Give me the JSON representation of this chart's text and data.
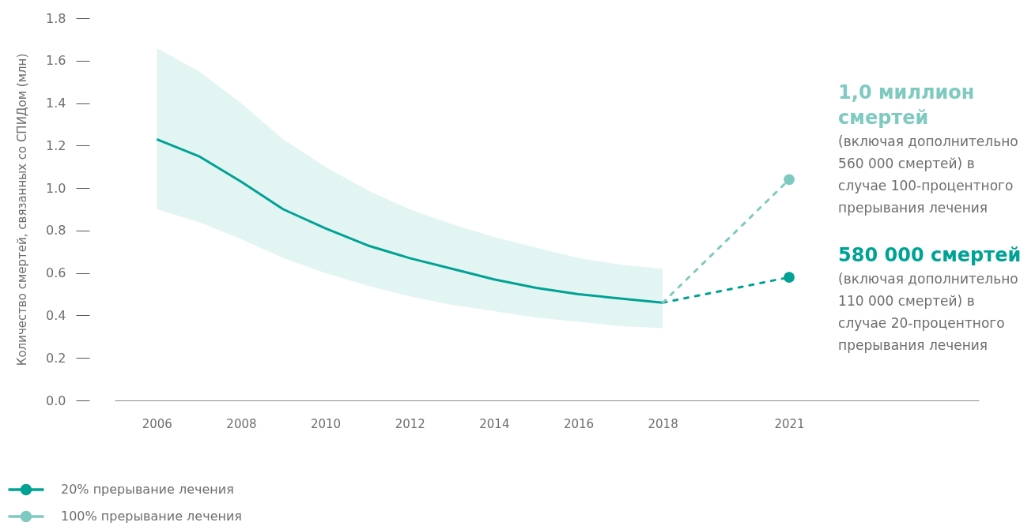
{
  "chart_data": {
    "type": "line",
    "ylabel": "Количество смертей, связанных со СПИДом (млн)",
    "xlim": [
      2005,
      2025.5
    ],
    "xticks": [
      2006,
      2008,
      2010,
      2012,
      2014,
      2016,
      2018,
      2021
    ],
    "ylim": [
      0,
      1.8
    ],
    "yticks": [
      {
        "value": 0,
        "label": "0.0"
      },
      0.2,
      0.4,
      0.6,
      0.8,
      {
        "value": 1,
        "label": "1.0"
      },
      1.2,
      1.4,
      1.6,
      1.8
    ],
    "legend": "bottom left",
    "series": [
      {
        "color": "#00a295",
        "x": [
          2006,
          2007,
          2008,
          2009,
          2010,
          2011,
          2012,
          2013,
          2014,
          2015,
          2016,
          2017,
          2018
        ],
        "values": [
          1.23,
          1.15,
          1.03,
          0.9,
          0.81,
          0.73,
          0.67,
          0.62,
          0.57,
          0.53,
          0.5,
          0.48,
          0.46
        ],
        "lower": [
          0.9,
          0.84,
          0.76,
          0.67,
          0.6,
          0.54,
          0.49,
          0.45,
          0.42,
          0.39,
          0.37,
          0.35,
          0.34
        ],
        "upper": [
          1.66,
          1.55,
          1.4,
          1.23,
          1.1,
          0.99,
          0.9,
          0.83,
          0.77,
          0.72,
          0.67,
          0.64,
          0.62
        ],
        "line_style": "solid"
      },
      {
        "color": "#00a295",
        "x": [
          2018,
          2021
        ],
        "values": [
          0.46,
          0.58
        ],
        "line_style": "dashed"
      },
      {
        "color": "#7fcac0",
        "x": [
          2018,
          2021
        ],
        "values": [
          0.46,
          1.04
        ],
        "line_style": "dashed"
      },
      {
        "type": "scatter",
        "name": "20% прерывание лечения",
        "color": "#00a295",
        "x": [
          2021
        ],
        "values": [
          0.58
        ],
        "marker": "circle"
      },
      {
        "type": "scatter",
        "name": "100% прерывание лечения",
        "color": "#7fcac0",
        "x": [
          2021
        ],
        "values": [
          1.04
        ],
        "marker": "circle"
      }
    ],
    "annotations": [
      {
        "text": "1,0 миллион смертей (включая дополнительно 560 000 смертей) в случае 100-процентного прерывания лечения",
        "x": 2021,
        "y": 1.04
      },
      {
        "text": "580 000 смертей (включая дополнительно 110 000 смертей) в случае 20-процентного прерывания лечения",
        "x": 2021,
        "y": 0.58
      }
    ]
  }
}
